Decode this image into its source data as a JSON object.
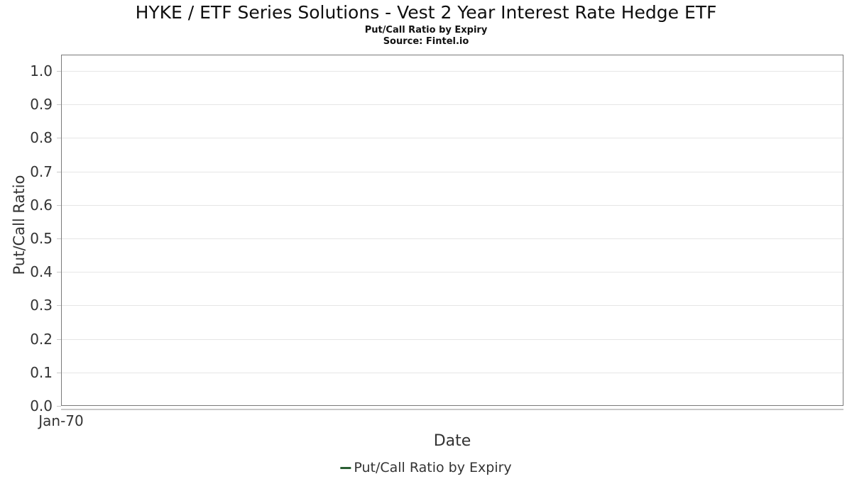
{
  "header": {
    "title": "HYKE / ETF Series Solutions - Vest 2 Year Interest Rate Hedge ETF",
    "subtitle": "Put/Call Ratio by Expiry",
    "source": "Source: Fintel.io"
  },
  "axes": {
    "y_title": "Put/Call Ratio",
    "x_title": "Date",
    "y_tick_labels": [
      "1.0",
      "0.9",
      "0.8",
      "0.7",
      "0.6",
      "0.5",
      "0.4",
      "0.3",
      "0.2",
      "0.1",
      "0.0"
    ],
    "x_tick_labels": [
      "Jan-70"
    ]
  },
  "legend": {
    "label": "Put/Call Ratio by Expiry",
    "color": "#2a5e33"
  },
  "colors": {
    "plot_border": "#7a7a7a",
    "gridline": "#e6e6e6",
    "tick_mark": "#c9c9c9",
    "axis_text": "#333333",
    "title_text": "#0f0f0f"
  },
  "chart_data": {
    "type": "line",
    "title": "HYKE / ETF Series Solutions - Vest 2 Year Interest Rate Hedge ETF",
    "subtitle": "Put/Call Ratio by Expiry",
    "source": "Source: Fintel.io",
    "xlabel": "Date",
    "ylabel": "Put/Call Ratio",
    "ylim": [
      0.0,
      1.05
    ],
    "y_ticks": [
      0.0,
      0.1,
      0.2,
      0.3,
      0.4,
      0.5,
      0.6,
      0.7,
      0.8,
      0.9,
      1.0
    ],
    "x_tick_labels": [
      "Jan-70"
    ],
    "grid": "horizontal",
    "legend_position": "bottom-center",
    "series": [
      {
        "name": "Put/Call Ratio by Expiry",
        "color": "#2a5e33",
        "x": [],
        "y": []
      }
    ]
  }
}
